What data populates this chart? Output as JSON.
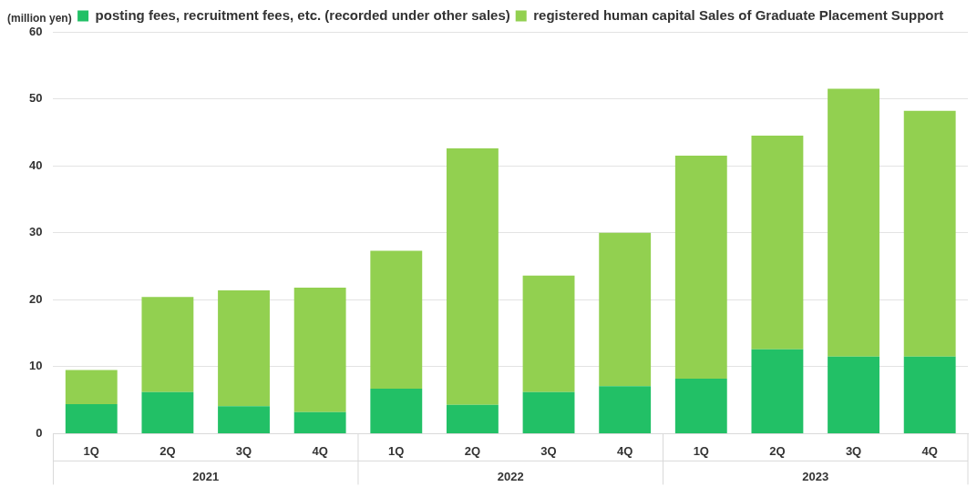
{
  "chart_data": {
    "type": "bar",
    "stacked": true,
    "ylabel": "(million yen)",
    "categories": [
      "1Q",
      "2Q",
      "3Q",
      "4Q",
      "1Q",
      "2Q",
      "3Q",
      "4Q",
      "1Q",
      "2Q",
      "3Q",
      "4Q"
    ],
    "series": [
      {
        "name": "posting fees, recruitment fees, etc. (recorded under other sales)",
        "color": "#22c066",
        "values": [
          4.4,
          6.2,
          4.1,
          3.2,
          6.7,
          4.3,
          6.2,
          7.1,
          8.2,
          12.6,
          11.5,
          11.5
        ]
      },
      {
        "name": "registered human capital Sales of Graduate Placement Support",
        "color": "#92d050",
        "values": [
          5.1,
          14.2,
          17.3,
          18.6,
          20.6,
          38.3,
          17.4,
          22.9,
          33.3,
          31.9,
          40.0,
          36.7
        ]
      }
    ],
    "ylim": [
      0,
      60
    ],
    "yticks": [
      0,
      10,
      20,
      30,
      40,
      50,
      60
    ],
    "grid": "y",
    "legend": "top",
    "annotations": [
      "2021",
      "2022",
      "2023"
    ]
  }
}
